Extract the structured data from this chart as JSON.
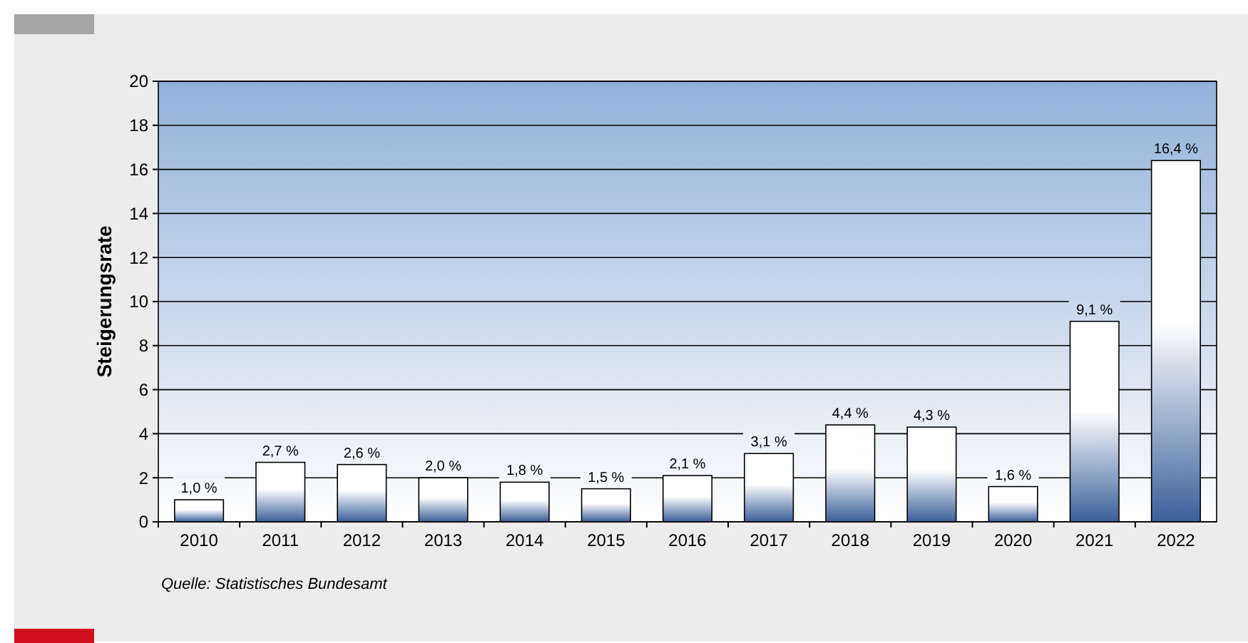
{
  "chart_data": {
    "type": "bar",
    "ylabel": "Steigerungsrate",
    "categories": [
      "2010",
      "2011",
      "2012",
      "2013",
      "2014",
      "2015",
      "2016",
      "2017",
      "2018",
      "2019",
      "2020",
      "2021",
      "2022"
    ],
    "values": [
      1.0,
      2.7,
      2.6,
      2.0,
      1.8,
      1.5,
      2.1,
      3.1,
      4.4,
      4.3,
      1.6,
      9.1,
      16.4
    ],
    "value_labels": [
      "1,0 %",
      "2,7 %",
      "2,6 %",
      "2,0 %",
      "1,8 %",
      "1,5 %",
      "2,1 %",
      "3,1 %",
      "4,4 %",
      "4,3 %",
      "1,6 %",
      "9,1 %",
      "16,4 %"
    ],
    "ylim": [
      0,
      20
    ],
    "yticks": [
      0,
      2,
      4,
      6,
      8,
      10,
      12,
      14,
      16,
      18,
      20
    ],
    "grid": "y",
    "annotations": [
      "Quelle: Statistisches Bundesamt"
    ]
  }
}
